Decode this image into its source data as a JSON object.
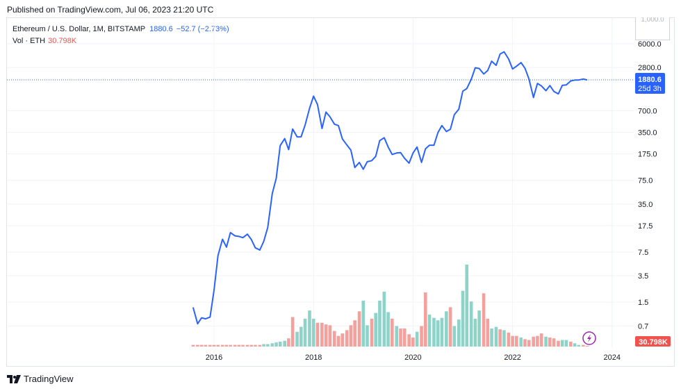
{
  "header": {
    "published": "Published on TradingView.com, Jul 06, 2023 21:20 UTC"
  },
  "legend": {
    "symbol": "Ethereum / U.S. Dollar, 1M, BITSTAMP",
    "last": "1880.6",
    "change": "−52.7 (−2.73%)",
    "vol_label": "Vol · ETH",
    "vol_value": "30.798K"
  },
  "scale_box": "1,000.0",
  "price_tag": {
    "value": "1880.6",
    "countdown": "25d 3h"
  },
  "vol_tag": "30.798K",
  "footer": {
    "brand": "TradingView"
  },
  "colors": {
    "line": "#2962ff",
    "vol_up": "#8dd3c7",
    "vol_down": "#f4a09c",
    "tag_blue": "#2962ff",
    "tag_red": "#ef5350"
  },
  "chart_data": {
    "type": "line",
    "scale": "log",
    "price_ticks": [
      "6000.0",
      "2800.0",
      "700.0",
      "350.0",
      "175.0",
      "75.0",
      "35.0",
      "17.5",
      "7.5",
      "3.5",
      "1.5",
      "0.7"
    ],
    "year_ticks": [
      "2016",
      "2018",
      "2020",
      "2022",
      "2024"
    ],
    "series": [
      {
        "values": [
          [
            2015.58,
            1.27
          ],
          [
            2015.67,
            0.75
          ],
          [
            2015.75,
            0.91
          ],
          [
            2015.83,
            0.88
          ],
          [
            2015.92,
            0.93
          ],
          [
            2016.0,
            2.2
          ],
          [
            2016.08,
            6.7
          ],
          [
            2016.17,
            11.3
          ],
          [
            2016.25,
            8.8
          ],
          [
            2016.33,
            14.0
          ],
          [
            2016.42,
            12.6
          ],
          [
            2016.5,
            12.4
          ],
          [
            2016.58,
            11.9
          ],
          [
            2016.67,
            13.3
          ],
          [
            2016.75,
            11.2
          ],
          [
            2016.83,
            8.6
          ],
          [
            2016.92,
            8.0
          ],
          [
            2017.0,
            10.6
          ],
          [
            2017.08,
            16.5
          ],
          [
            2017.17,
            49.0
          ],
          [
            2017.25,
            80.0
          ],
          [
            2017.33,
            228
          ],
          [
            2017.42,
            286
          ],
          [
            2017.5,
            201
          ],
          [
            2017.58,
            389
          ],
          [
            2017.67,
            302
          ],
          [
            2017.75,
            303
          ],
          [
            2017.83,
            440
          ],
          [
            2017.92,
            757
          ],
          [
            2018.0,
            1118
          ],
          [
            2018.08,
            856
          ],
          [
            2018.17,
            396
          ],
          [
            2018.25,
            670
          ],
          [
            2018.33,
            577
          ],
          [
            2018.42,
            454
          ],
          [
            2018.5,
            434
          ],
          [
            2018.58,
            283
          ],
          [
            2018.67,
            233
          ],
          [
            2018.75,
            198
          ],
          [
            2018.83,
            113
          ],
          [
            2018.92,
            133
          ],
          [
            2019.0,
            107
          ],
          [
            2019.08,
            136
          ],
          [
            2019.17,
            141
          ],
          [
            2019.25,
            162
          ],
          [
            2019.33,
            268
          ],
          [
            2019.42,
            294
          ],
          [
            2019.5,
            218
          ],
          [
            2019.58,
            172
          ],
          [
            2019.67,
            180
          ],
          [
            2019.75,
            182
          ],
          [
            2019.83,
            152
          ],
          [
            2019.92,
            130
          ],
          [
            2020.0,
            180
          ],
          [
            2020.08,
            218
          ],
          [
            2020.17,
            133
          ],
          [
            2020.25,
            206
          ],
          [
            2020.33,
            231
          ],
          [
            2020.42,
            231
          ],
          [
            2020.5,
            346
          ],
          [
            2020.58,
            434
          ],
          [
            2020.67,
            359
          ],
          [
            2020.75,
            386
          ],
          [
            2020.83,
            616
          ],
          [
            2020.92,
            737
          ],
          [
            2021.0,
            1312
          ],
          [
            2021.08,
            1421
          ],
          [
            2021.17,
            1919
          ],
          [
            2021.25,
            2773
          ],
          [
            2021.33,
            2712
          ],
          [
            2021.42,
            2275
          ],
          [
            2021.5,
            2536
          ],
          [
            2021.58,
            3430
          ],
          [
            2021.67,
            3000
          ],
          [
            2021.75,
            4320
          ],
          [
            2021.83,
            4630
          ],
          [
            2021.92,
            3680
          ],
          [
            2022.0,
            2670
          ],
          [
            2022.08,
            2920
          ],
          [
            2022.17,
            3280
          ],
          [
            2022.25,
            2730
          ],
          [
            2022.33,
            1940
          ],
          [
            2022.42,
            1070
          ],
          [
            2022.5,
            1680
          ],
          [
            2022.58,
            1550
          ],
          [
            2022.67,
            1330
          ],
          [
            2022.75,
            1570
          ],
          [
            2022.83,
            1300
          ],
          [
            2022.92,
            1200
          ],
          [
            2023.0,
            1580
          ],
          [
            2023.08,
            1605
          ],
          [
            2023.17,
            1820
          ],
          [
            2023.25,
            1870
          ],
          [
            2023.33,
            1874
          ],
          [
            2023.42,
            1934
          ],
          [
            2023.5,
            1880.6
          ]
        ]
      }
    ],
    "volume": {
      "values": [
        [
          2015.58,
          0.02,
          "down"
        ],
        [
          2015.67,
          0.02,
          "down"
        ],
        [
          2015.75,
          0.02,
          "down"
        ],
        [
          2015.83,
          0.02,
          "down"
        ],
        [
          2015.92,
          0.02,
          "down"
        ],
        [
          2016.0,
          0.02,
          "down"
        ],
        [
          2016.08,
          0.02,
          "down"
        ],
        [
          2016.17,
          0.02,
          "down"
        ],
        [
          2016.25,
          0.02,
          "down"
        ],
        [
          2016.33,
          0.02,
          "down"
        ],
        [
          2016.42,
          0.02,
          "down"
        ],
        [
          2016.5,
          0.02,
          "down"
        ],
        [
          2016.58,
          0.02,
          "down"
        ],
        [
          2016.67,
          0.02,
          "down"
        ],
        [
          2016.75,
          0.02,
          "down"
        ],
        [
          2016.83,
          0.02,
          "down"
        ],
        [
          2016.92,
          0.02,
          "down"
        ],
        [
          2017.0,
          0.03,
          "up"
        ],
        [
          2017.08,
          0.03,
          "up"
        ],
        [
          2017.17,
          0.04,
          "up"
        ],
        [
          2017.25,
          0.05,
          "up"
        ],
        [
          2017.33,
          0.06,
          "up"
        ],
        [
          2017.42,
          0.07,
          "up"
        ],
        [
          2017.5,
          0.1,
          "down"
        ],
        [
          2017.58,
          0.36,
          "down"
        ],
        [
          2017.67,
          0.18,
          "up"
        ],
        [
          2017.75,
          0.24,
          "up"
        ],
        [
          2017.83,
          0.34,
          "up"
        ],
        [
          2017.92,
          0.44,
          "up"
        ],
        [
          2018.0,
          0.34,
          "up"
        ],
        [
          2018.08,
          0.29,
          "down"
        ],
        [
          2018.17,
          0.29,
          "down"
        ],
        [
          2018.25,
          0.27,
          "down"
        ],
        [
          2018.33,
          0.26,
          "down"
        ],
        [
          2018.42,
          0.19,
          "down"
        ],
        [
          2018.5,
          0.13,
          "down"
        ],
        [
          2018.58,
          0.16,
          "down"
        ],
        [
          2018.67,
          0.2,
          "down"
        ],
        [
          2018.75,
          0.26,
          "down"
        ],
        [
          2018.83,
          0.32,
          "down"
        ],
        [
          2018.92,
          0.43,
          "down"
        ],
        [
          2019.0,
          0.56,
          "up"
        ],
        [
          2019.08,
          0.26,
          "up"
        ],
        [
          2019.17,
          0.34,
          "down"
        ],
        [
          2019.25,
          0.41,
          "up"
        ],
        [
          2019.33,
          0.56,
          "up"
        ],
        [
          2019.42,
          0.67,
          "up"
        ],
        [
          2019.5,
          0.42,
          "up"
        ],
        [
          2019.58,
          0.34,
          "down"
        ],
        [
          2019.67,
          0.25,
          "up"
        ],
        [
          2019.75,
          0.22,
          "down"
        ],
        [
          2019.83,
          0.22,
          "down"
        ],
        [
          2019.92,
          0.15,
          "down"
        ],
        [
          2020.0,
          0.11,
          "down"
        ],
        [
          2020.08,
          0.18,
          "up"
        ],
        [
          2020.17,
          0.25,
          "down"
        ],
        [
          2020.25,
          0.66,
          "down"
        ],
        [
          2020.33,
          0.39,
          "up"
        ],
        [
          2020.42,
          0.35,
          "up"
        ],
        [
          2020.5,
          0.32,
          "up"
        ],
        [
          2020.58,
          0.35,
          "up"
        ],
        [
          2020.67,
          0.43,
          "up"
        ],
        [
          2020.75,
          0.48,
          "down"
        ],
        [
          2020.83,
          0.25,
          "up"
        ],
        [
          2020.92,
          0.33,
          "up"
        ],
        [
          2021.0,
          0.68,
          "up"
        ],
        [
          2021.08,
          1.0,
          "up"
        ],
        [
          2021.17,
          0.55,
          "up"
        ],
        [
          2021.25,
          0.34,
          "up"
        ],
        [
          2021.33,
          0.44,
          "up"
        ],
        [
          2021.42,
          0.65,
          "down"
        ],
        [
          2021.5,
          0.34,
          "down"
        ],
        [
          2021.58,
          0.22,
          "up"
        ],
        [
          2021.67,
          0.24,
          "up"
        ],
        [
          2021.75,
          0.21,
          "down"
        ],
        [
          2021.83,
          0.2,
          "up"
        ],
        [
          2021.92,
          0.17,
          "down"
        ],
        [
          2022.0,
          0.13,
          "down"
        ],
        [
          2022.08,
          0.13,
          "down"
        ],
        [
          2022.17,
          0.11,
          "up"
        ],
        [
          2022.25,
          0.09,
          "down"
        ],
        [
          2022.33,
          0.08,
          "down"
        ],
        [
          2022.42,
          0.12,
          "down"
        ],
        [
          2022.5,
          0.13,
          "down"
        ],
        [
          2022.58,
          0.16,
          "down"
        ],
        [
          2022.67,
          0.12,
          "up"
        ],
        [
          2022.75,
          0.11,
          "down"
        ],
        [
          2022.83,
          0.1,
          "down"
        ],
        [
          2022.92,
          0.07,
          "down"
        ],
        [
          2023.0,
          0.08,
          "up"
        ],
        [
          2023.08,
          0.08,
          "up"
        ],
        [
          2023.17,
          0.06,
          "down"
        ],
        [
          2023.25,
          0.04,
          "up"
        ],
        [
          2023.33,
          0.02,
          "up"
        ],
        [
          2023.42,
          0.02,
          "down"
        ],
        [
          2023.5,
          0.01,
          "down"
        ]
      ]
    }
  }
}
